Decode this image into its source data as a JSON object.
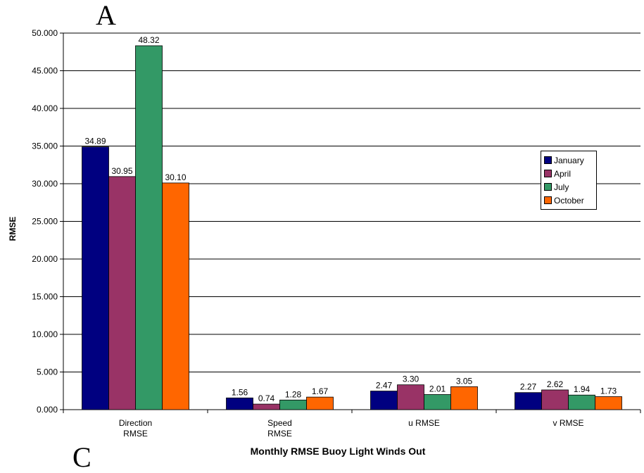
{
  "panel_letters": {
    "top": "A",
    "bottom": "C"
  },
  "chart_data": {
    "type": "bar",
    "title": "",
    "xlabel": "Monthly RMSE Buoy Light Winds Out",
    "ylabel": "RMSE",
    "ylim": [
      0,
      50
    ],
    "yticks": [
      "0.000",
      "5.000",
      "10.000",
      "15.000",
      "20.000",
      "25.000",
      "30.000",
      "35.000",
      "40.000",
      "45.000",
      "50.000"
    ],
    "categories": [
      [
        "Direction",
        "RMSE"
      ],
      [
        "Speed",
        "RMSE"
      ],
      [
        "u RMSE"
      ],
      [
        "v RMSE"
      ]
    ],
    "series": [
      {
        "name": "January",
        "color": "#000080",
        "values": [
          34.89,
          1.56,
          2.47,
          2.27
        ],
        "labels": [
          "34.89",
          "1.56",
          "2.47",
          "2.27"
        ]
      },
      {
        "name": "April",
        "color": "#993366",
        "values": [
          30.95,
          0.74,
          3.3,
          2.62
        ],
        "labels": [
          "30.95",
          "0.74",
          "3.30",
          "2.62"
        ]
      },
      {
        "name": "July",
        "color": "#339966",
        "values": [
          48.32,
          1.28,
          2.01,
          1.94
        ],
        "labels": [
          "48.32",
          "1.28",
          "2.01",
          "1.94"
        ]
      },
      {
        "name": "October",
        "color": "#FF6600",
        "values": [
          30.1,
          1.67,
          3.05,
          1.73
        ],
        "labels": [
          "30.10",
          "1.67",
          "3.05",
          "1.73"
        ]
      }
    ],
    "grid": true,
    "legend_position": "right"
  }
}
